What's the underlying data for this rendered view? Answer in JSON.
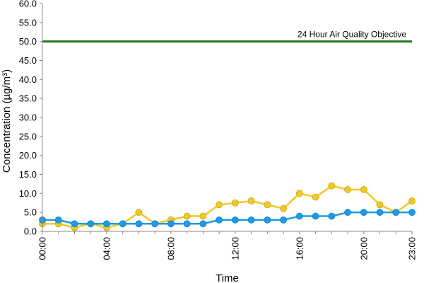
{
  "chart_data": {
    "type": "line",
    "xlabel": "Time",
    "ylabel": "Concentration (µg/m³)",
    "x": [
      0,
      1,
      2,
      3,
      4,
      5,
      6,
      7,
      8,
      9,
      10,
      11,
      12,
      13,
      14,
      15,
      16,
      17,
      18,
      19,
      20,
      21,
      22,
      23
    ],
    "x_tick_labels": [
      {
        "x": 0,
        "label": "00:00"
      },
      {
        "x": 4,
        "label": "04:00"
      },
      {
        "x": 8,
        "label": "08:00"
      },
      {
        "x": 12,
        "label": "12:00"
      },
      {
        "x": 16,
        "label": "16:00"
      },
      {
        "x": 20,
        "label": "20:00"
      },
      {
        "x": 23,
        "label": "23:00"
      }
    ],
    "y_tick_labels": [
      "0.0",
      "5.0",
      "10.0",
      "15.0",
      "20.0",
      "25.0",
      "30.0",
      "35.0",
      "40.0",
      "45.0",
      "50.0",
      "55.0",
      "60.0"
    ],
    "ylim": [
      0,
      60
    ],
    "xlim": [
      0,
      23
    ],
    "grid": false,
    "series": [
      {
        "color": "#f0c929",
        "values": [
          2,
          2,
          1,
          2,
          1,
          2,
          5,
          2,
          3,
          4,
          4,
          7,
          7.5,
          8,
          7,
          6,
          10,
          9,
          12,
          11,
          11,
          7,
          5,
          8
        ]
      },
      {
        "color": "#1e9be8",
        "values": [
          3,
          3,
          2,
          2,
          2,
          2,
          2,
          2,
          2,
          2,
          2,
          3,
          3,
          3,
          3,
          3,
          4,
          4,
          4,
          5,
          5,
          5,
          5,
          5
        ]
      }
    ],
    "reference_line": {
      "value": 50,
      "label": "24 Hour Air Quality Objective",
      "color": "#1f7a1f"
    }
  }
}
